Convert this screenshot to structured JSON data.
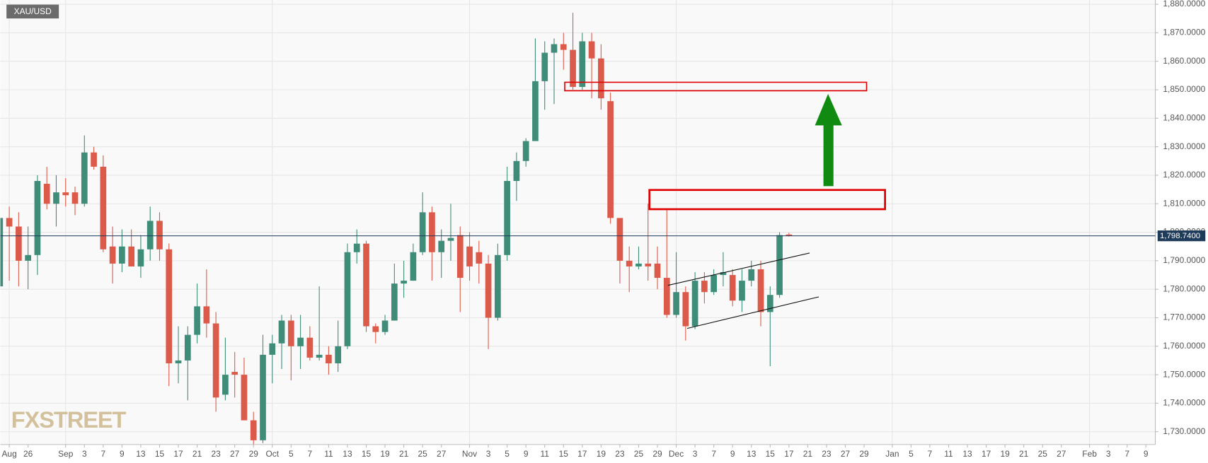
{
  "chart_data": {
    "type": "candlestick",
    "title": "XAU/USD",
    "watermark": "FXSTREET",
    "categories": [
      null,
      "Aug",
      null,
      "26",
      null,
      null,
      null,
      "Sep",
      null,
      "3",
      null,
      "7",
      null,
      "9",
      null,
      "13",
      null,
      "15",
      null,
      "17",
      null,
      "21",
      null,
      "23",
      null,
      "27",
      null,
      "29",
      null,
      "Oct",
      null,
      "5",
      null,
      "7",
      null,
      "11",
      null,
      "13",
      null,
      "15",
      null,
      "19",
      null,
      "21",
      null,
      "25",
      null,
      "27",
      null,
      null,
      "Nov",
      null,
      "3",
      null,
      "5",
      null,
      "9",
      null,
      "11",
      null,
      "15",
      null,
      "17",
      null,
      "19",
      null,
      "23",
      null,
      "25",
      null,
      "29",
      null,
      "Dec",
      null,
      "3",
      null,
      "7",
      null,
      "9",
      null,
      "13",
      null,
      "15",
      null,
      "17",
      null,
      "21",
      null,
      "23",
      null,
      "27",
      null,
      "29",
      null,
      null,
      "Jan",
      null,
      "5",
      null,
      "7",
      null,
      "11",
      null,
      "13",
      null,
      "17",
      null,
      "19",
      null,
      "21",
      null,
      "25",
      null,
      "27",
      null,
      null,
      "Feb",
      null,
      "3",
      null,
      "7",
      null,
      "9"
    ],
    "open": [
      1781,
      1805,
      1802,
      1790,
      1792,
      1817,
      1810,
      1814,
      1814,
      1810,
      1828,
      1823,
      1795,
      1789,
      1795,
      1788,
      1794,
      1804,
      1794,
      1754,
      1755,
      1764,
      1774,
      1768,
      1743,
      1751,
      1750,
      1734,
      1727,
      1757,
      1761,
      1769,
      1760,
      1763,
      1756,
      1757,
      1754,
      1760,
      1793,
      1796,
      1767,
      1765,
      1769,
      1782,
      1783,
      1793,
      1807,
      1793,
      1797,
      1799,
      1795,
      1793,
      1789,
      1770,
      1792,
      1818,
      1825,
      1832,
      1853,
      1863,
      1866,
      1864,
      1851,
      1867,
      1861,
      1846,
      1805,
      1790,
      1788,
      1789,
      1789,
      1784,
      1771,
      1779,
      1767,
      1783,
      1779,
      1785,
      1785,
      1776,
      1783,
      1787,
      1772,
      1778,
      1799.2,
      null,
      null,
      null,
      null,
      null,
      null,
      null,
      null,
      null,
      null,
      null,
      null,
      null,
      null,
      null,
      null,
      null,
      null,
      null,
      null,
      null,
      null,
      null,
      null,
      null,
      null,
      null,
      null,
      null,
      null,
      null,
      null,
      null,
      null,
      null,
      null,
      null,
      null
    ],
    "high": [
      1809,
      1809,
      1807,
      1802,
      1820,
      1823,
      1820,
      1819,
      1816,
      1834,
      1830,
      1827,
      1802,
      1801,
      1801,
      1799,
      1809,
      1807,
      1796,
      1767,
      1767,
      1782,
      1787,
      1772,
      1763,
      1758,
      1756,
      1737,
      1764,
      1764,
      1771,
      1771,
      1771,
      1767,
      1781,
      1760,
      1769,
      1796,
      1801,
      1797,
      1768,
      1771,
      1789,
      1790,
      1796,
      1814,
      1809,
      1801,
      1810,
      1802,
      1800,
      1797,
      1792,
      1796,
      1823,
      1828,
      1833,
      1868,
      1867,
      1868,
      1870,
      1877,
      1870,
      1870,
      1866,
      1849,
      1805,
      1795,
      1795,
      1810,
      1795,
      1808,
      1793,
      1781,
      1786,
      1786,
      1787,
      1793,
      1787,
      1787,
      1790,
      1790,
      1781,
      1800,
      1799.8,
      null,
      null,
      null,
      null,
      null,
      null,
      null,
      null,
      null,
      null,
      null,
      null,
      null,
      null,
      null,
      null,
      null,
      null,
      null,
      null,
      null,
      null,
      null,
      null,
      null,
      null,
      null,
      null,
      null,
      null,
      null,
      null,
      null,
      null,
      null,
      null,
      null,
      null
    ],
    "low": [
      1779,
      1783,
      1781,
      1780,
      1785,
      1808,
      1802,
      1809,
      1806,
      1809,
      1822,
      1793,
      1782,
      1786,
      1788,
      1784,
      1790,
      1790,
      1746,
      1747,
      1741,
      1761,
      1763,
      1737,
      1741,
      1742,
      1734,
      1725,
      1726,
      1747,
      1752,
      1748,
      1752,
      1755,
      1755,
      1750,
      1751,
      1759,
      1789,
      1765,
      1761,
      1764,
      1769,
      1777,
      1783,
      1792,
      1783,
      1784,
      1790,
      1772,
      1783,
      1782,
      1759,
      1769,
      1790,
      1811,
      1823,
      1832,
      1843,
      1845,
      1857,
      1850,
      1850,
      1847,
      1843,
      1803,
      1782,
      1779,
      1787,
      1783,
      1780,
      1770,
      1770,
      1762,
      1766,
      1775,
      1778,
      1781,
      1774,
      1772,
      1781,
      1767,
      1753,
      1777,
      1798.5,
      null,
      null,
      null,
      null,
      null,
      null,
      null,
      null,
      null,
      null,
      null,
      null,
      null,
      null,
      null,
      null,
      null,
      null,
      null,
      null,
      null,
      null,
      null,
      null,
      null,
      null,
      null,
      null,
      null,
      null,
      null,
      null,
      null,
      null,
      null,
      null,
      null,
      null
    ],
    "close": [
      1805,
      1802,
      1790,
      1792,
      1818,
      1810,
      1814,
      1813,
      1810,
      1828,
      1823,
      1794,
      1789,
      1795,
      1788,
      1794,
      1804,
      1794,
      1754,
      1755,
      1764,
      1774,
      1768,
      1742,
      1750,
      1750,
      1734,
      1727,
      1757,
      1761,
      1769,
      1760,
      1763,
      1756,
      1757,
      1754,
      1760,
      1793,
      1796,
      1767,
      1765,
      1769,
      1782,
      1783,
      1793,
      1807,
      1793,
      1797,
      1798,
      1784,
      1788,
      1789,
      1770,
      1792,
      1818,
      1825,
      1832,
      1853,
      1863,
      1866,
      1864,
      1851,
      1867,
      1861,
      1847,
      1805,
      1790,
      1788,
      1789,
      1788,
      1784,
      1771,
      1779,
      1767,
      1783,
      1779,
      1785,
      1786,
      1776,
      1783,
      1787,
      1772,
      1778,
      1799,
      1798.74,
      null,
      null,
      null,
      null,
      null,
      null,
      null,
      null,
      null,
      null,
      null,
      null,
      null,
      null,
      null,
      null,
      null,
      null,
      null,
      null,
      null,
      null,
      null,
      null,
      null,
      null,
      null,
      null,
      null,
      null,
      null,
      null,
      null,
      null,
      null,
      null,
      null,
      null
    ],
    "up_color": "#3f8c79",
    "down_color": "#dc5a4a",
    "last_price": {
      "value": 1798.74,
      "label": "1,798.7400"
    },
    "ylim": [
      1725.5,
      1881.5
    ],
    "yticks": [
      {
        "value": 1730,
        "label": "1,730.0000"
      },
      {
        "value": 1740,
        "label": "1,740.0000"
      },
      {
        "value": 1750,
        "label": "1,750.0000"
      },
      {
        "value": 1760,
        "label": "1,760.0000"
      },
      {
        "value": 1770,
        "label": "1,770.0000"
      },
      {
        "value": 1780,
        "label": "1,780.0000"
      },
      {
        "value": 1790,
        "label": "1,790.0000"
      },
      {
        "value": 1800,
        "label": "1,800.0000"
      },
      {
        "value": 1810,
        "label": "1,810.0000"
      },
      {
        "value": 1820,
        "label": "1,820.0000"
      },
      {
        "value": 1830,
        "label": "1,830.0000"
      },
      {
        "value": 1840,
        "label": "1,840.0000"
      },
      {
        "value": 1850,
        "label": "1,850.0000"
      },
      {
        "value": 1860,
        "label": "1,860.0000"
      },
      {
        "value": 1870,
        "label": "1,870.0000"
      },
      {
        "value": 1880,
        "label": "1,880.0000"
      }
    ],
    "grid": true
  }
}
